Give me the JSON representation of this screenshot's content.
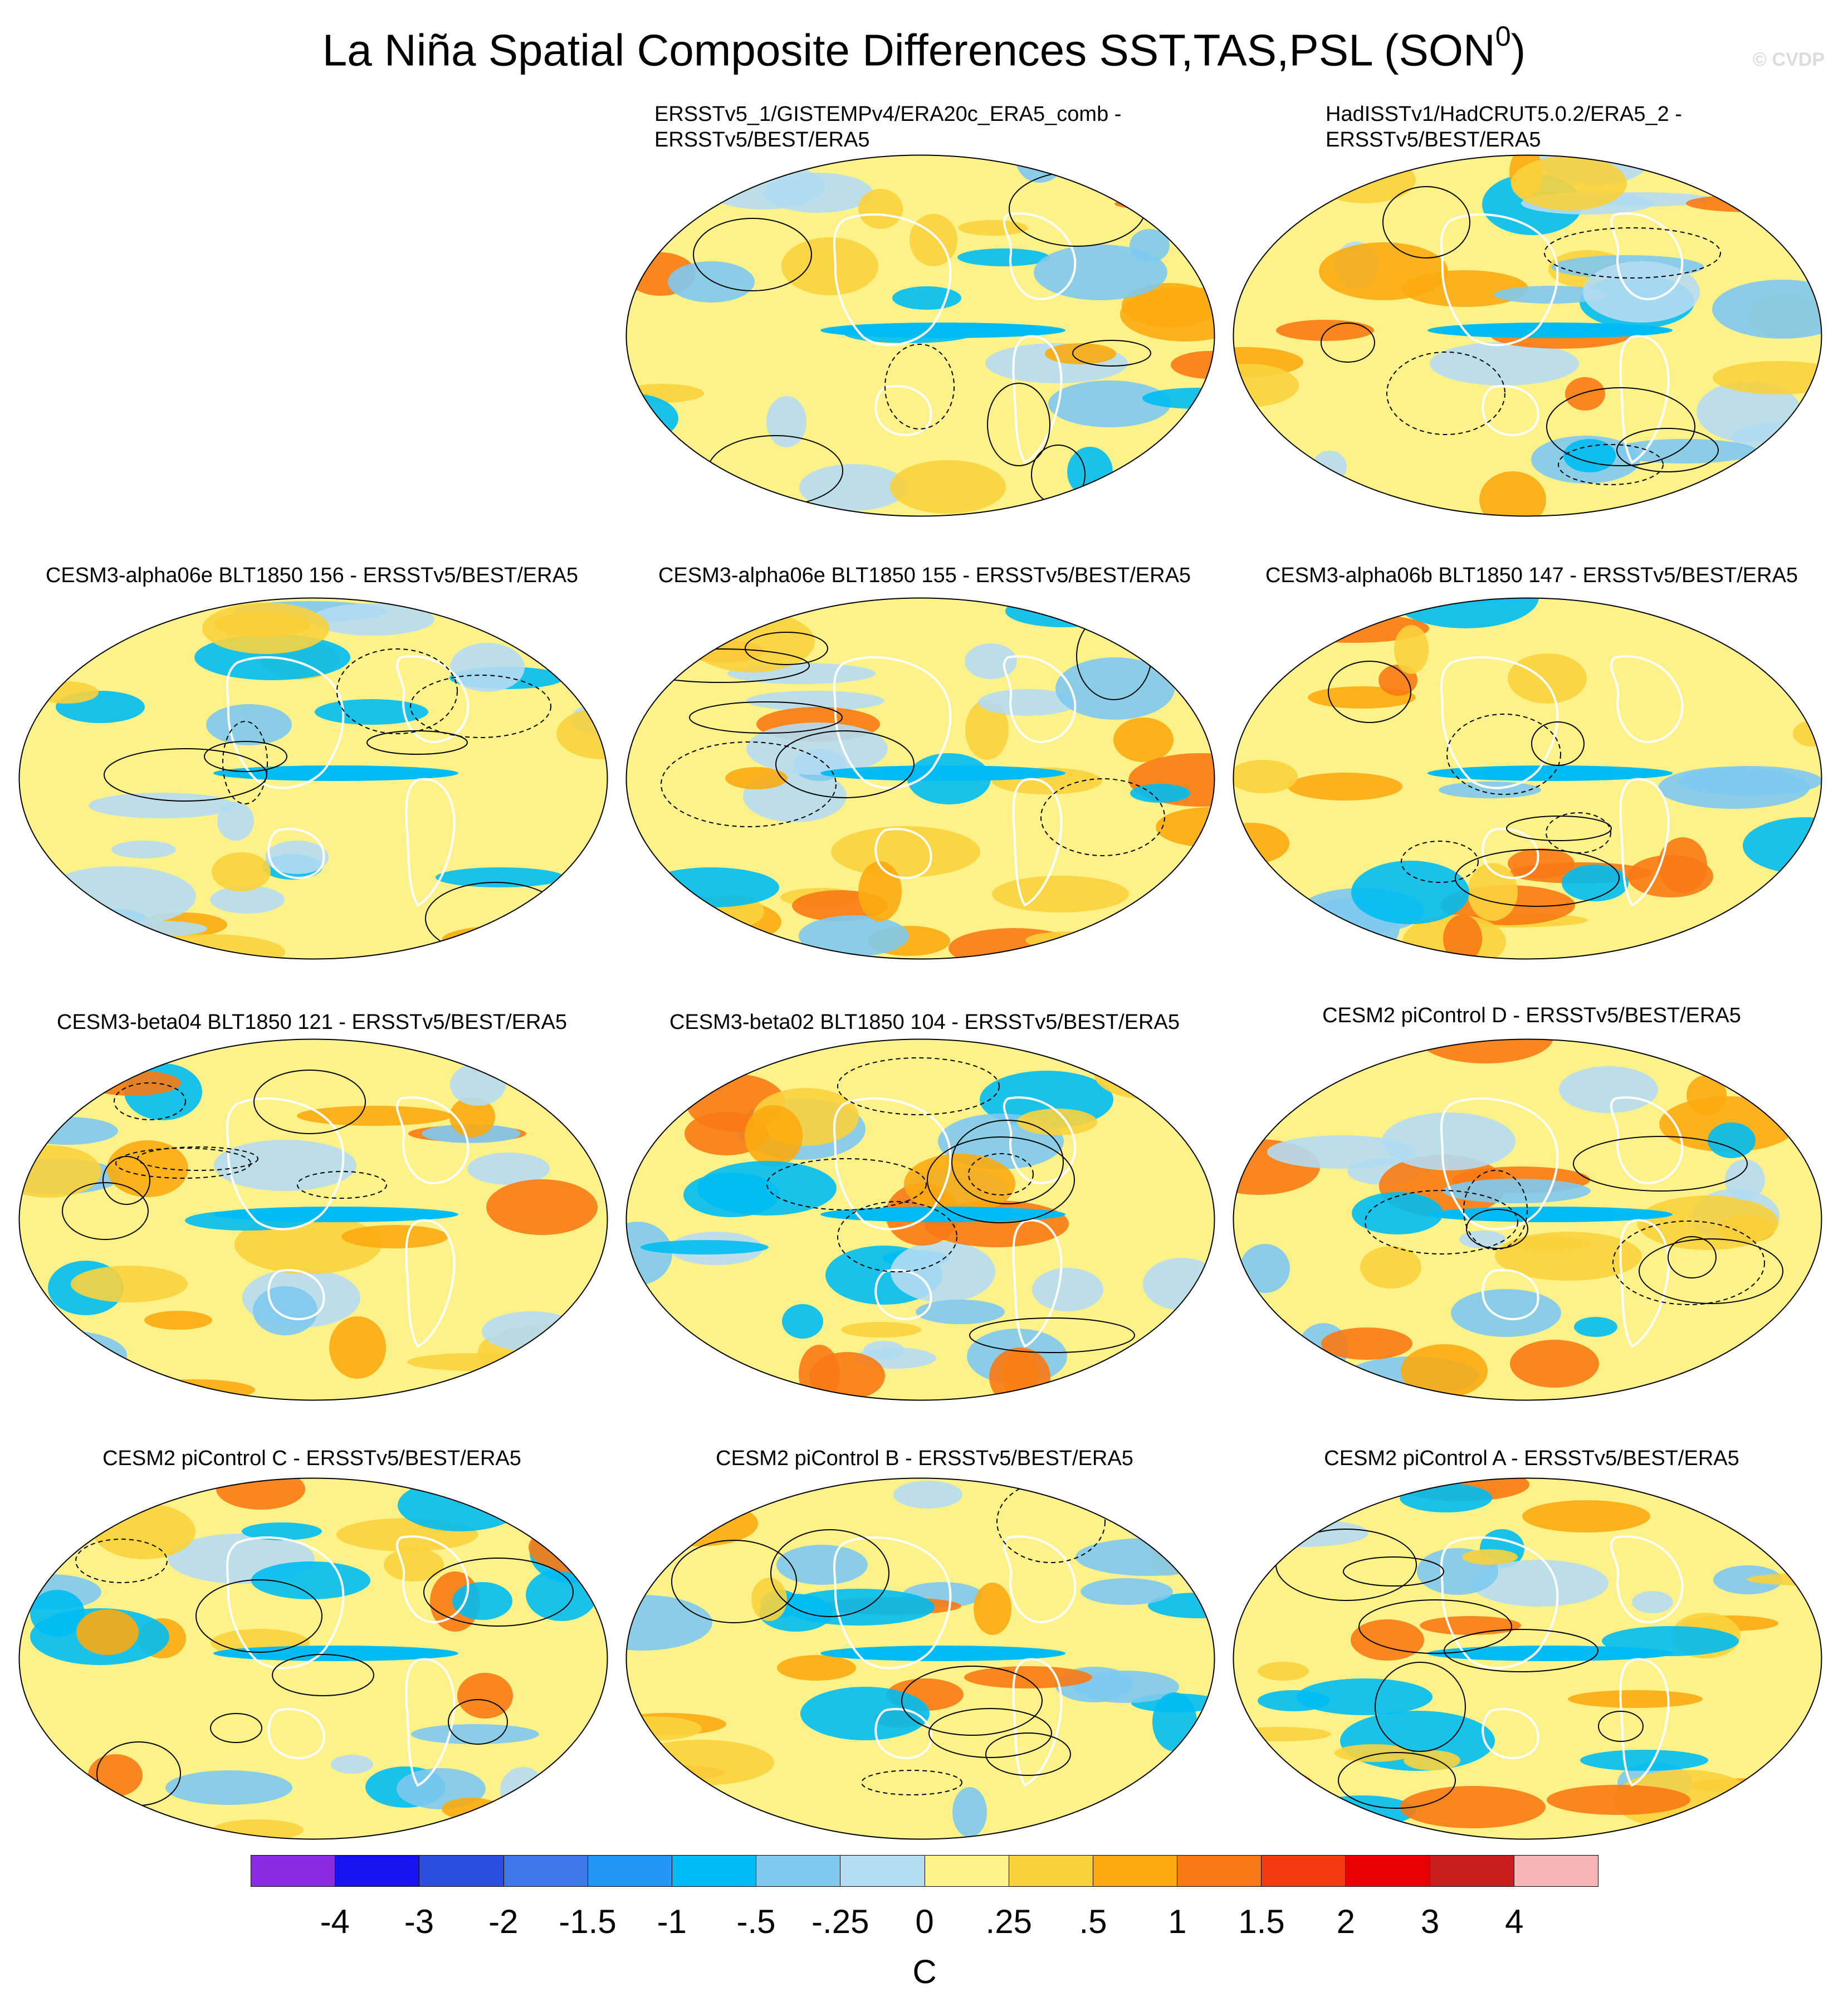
{
  "title": "La Niña Spatial Composite Differences SST,TAS,PSL (SON",
  "title_superscript": "0",
  "title_suffix": ")",
  "watermark": "© CVDP",
  "panels": [
    {
      "title": "ERSSTv5_1/GISTEMPv4/ERA20c_ERA5_comb -\nERSSTv5/BEST/ERA5"
    },
    {
      "title": "HadISSTv1/HadCRUT5.0.2/ERA5_2 -\nERSSTv5/BEST/ERA5"
    },
    {
      "title": "CESM3-alpha06e BLT1850 156 - ERSSTv5/BEST/ERA5"
    },
    {
      "title": "CESM3-alpha06e BLT1850 155 - ERSSTv5/BEST/ERA5"
    },
    {
      "title": "CESM3-alpha06b BLT1850 147 - ERSSTv5/BEST/ERA5"
    },
    {
      "title": "CESM3-beta04 BLT1850 121 - ERSSTv5/BEST/ERA5"
    },
    {
      "title": "CESM3-beta02 BLT1850 104 - ERSSTv5/BEST/ERA5"
    },
    {
      "title": "CESM2 piControl D - ERSSTv5/BEST/ERA5"
    },
    {
      "title": "CESM2 piControl C - ERSSTv5/BEST/ERA5"
    },
    {
      "title": "CESM2 piControl B - ERSSTv5/BEST/ERA5"
    },
    {
      "title": "CESM2 piControl A - ERSSTv5/BEST/ERA5"
    }
  ],
  "colorbar": {
    "unit": "C",
    "ticks": [
      "-4",
      "-3",
      "-2",
      "-1.5",
      "-1",
      "-.5",
      "-.25",
      "0",
      ".25",
      ".5",
      "1",
      "1.5",
      "2",
      "3",
      "4"
    ],
    "colors": [
      "#8a2be2",
      "#1414f0",
      "#2a4fe0",
      "#3c78e8",
      "#2196f3",
      "#00bcf2",
      "#7ec9f0",
      "#b4dcf2",
      "#fdf28a",
      "#fad23c",
      "#fbab10",
      "#f97a14",
      "#f33a10",
      "#e60000",
      "#c81e1e",
      "#f8b4b4"
    ]
  },
  "palette": {
    "neutral_warm": "#fdf28a",
    "neutral_cool": "#b4dcf2",
    "land_outline": "#ffffff",
    "contour": "#000000"
  }
}
